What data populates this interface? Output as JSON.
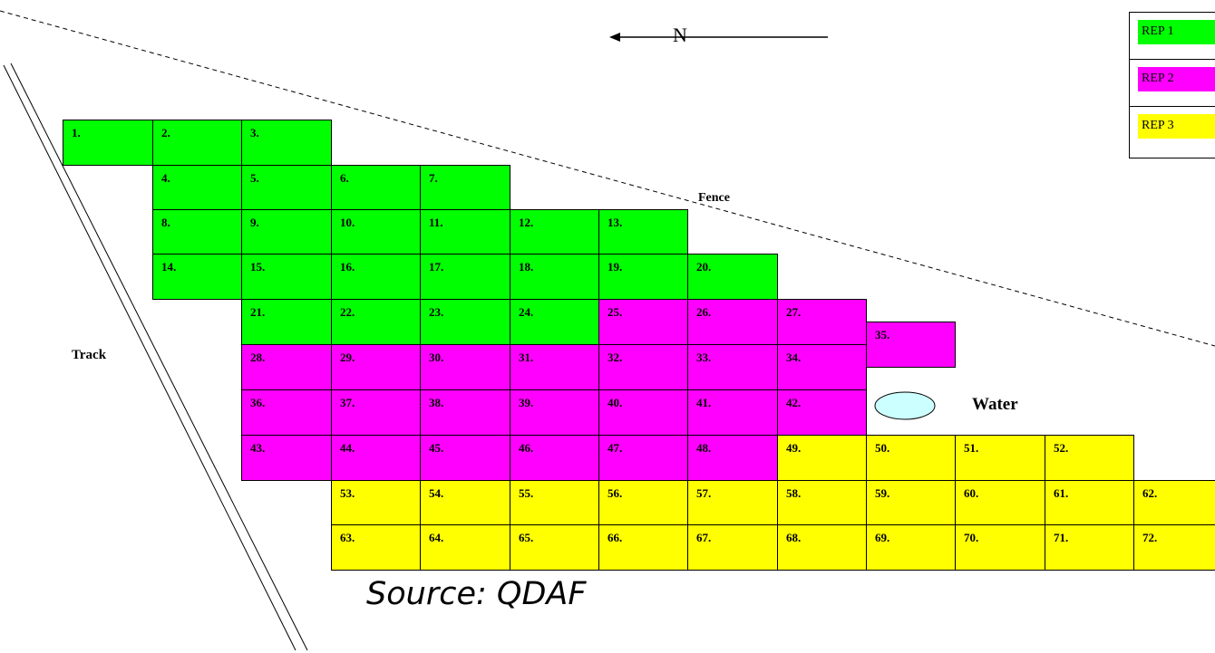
{
  "title": "",
  "colors": {
    "rep1": "#00ff00",
    "rep2": "#ff00ff",
    "rep3": "#ffff00",
    "water": "#ccffff"
  },
  "legend": [
    {
      "label": "REP 1",
      "color": "#00ff00"
    },
    {
      "label": "REP 2",
      "color": "#ff00ff"
    },
    {
      "label": "REP 3",
      "color": "#ffff00"
    }
  ],
  "labels": {
    "north": "N",
    "fence": "Fence",
    "track": "Track",
    "water": "Water",
    "source": "Source: QDAF"
  },
  "plots": [
    {
      "n": "1.",
      "rep": 1
    },
    {
      "n": "2.",
      "rep": 1
    },
    {
      "n": "3.",
      "rep": 1
    },
    {
      "n": "4.",
      "rep": 1
    },
    {
      "n": "5.",
      "rep": 1
    },
    {
      "n": "6.",
      "rep": 1
    },
    {
      "n": "7.",
      "rep": 1
    },
    {
      "n": "8.",
      "rep": 1
    },
    {
      "n": "9.",
      "rep": 1
    },
    {
      "n": "10.",
      "rep": 1
    },
    {
      "n": "11.",
      "rep": 1
    },
    {
      "n": "12.",
      "rep": 1
    },
    {
      "n": "13.",
      "rep": 1
    },
    {
      "n": "14.",
      "rep": 1
    },
    {
      "n": "15.",
      "rep": 1
    },
    {
      "n": "16.",
      "rep": 1
    },
    {
      "n": "17.",
      "rep": 1
    },
    {
      "n": "18.",
      "rep": 1
    },
    {
      "n": "19.",
      "rep": 1
    },
    {
      "n": "20.",
      "rep": 1
    },
    {
      "n": "21.",
      "rep": 1
    },
    {
      "n": "22.",
      "rep": 1
    },
    {
      "n": "23.",
      "rep": 1
    },
    {
      "n": "24.",
      "rep": 1
    },
    {
      "n": "25.",
      "rep": 2
    },
    {
      "n": "26.",
      "rep": 2
    },
    {
      "n": "27.",
      "rep": 2
    },
    {
      "n": "35.",
      "rep": 2
    },
    {
      "n": "28.",
      "rep": 2
    },
    {
      "n": "29.",
      "rep": 2
    },
    {
      "n": "30.",
      "rep": 2
    },
    {
      "n": "31.",
      "rep": 2
    },
    {
      "n": "32.",
      "rep": 2
    },
    {
      "n": "33.",
      "rep": 2
    },
    {
      "n": "34.",
      "rep": 2
    },
    {
      "n": "36.",
      "rep": 2
    },
    {
      "n": "37.",
      "rep": 2
    },
    {
      "n": "38.",
      "rep": 2
    },
    {
      "n": "39.",
      "rep": 2
    },
    {
      "n": "40.",
      "rep": 2
    },
    {
      "n": "41.",
      "rep": 2
    },
    {
      "n": "42.",
      "rep": 2
    },
    {
      "n": "43.",
      "rep": 2
    },
    {
      "n": "44.",
      "rep": 2
    },
    {
      "n": "45.",
      "rep": 2
    },
    {
      "n": "46.",
      "rep": 2
    },
    {
      "n": "47.",
      "rep": 2
    },
    {
      "n": "48.",
      "rep": 2
    },
    {
      "n": "49.",
      "rep": 3
    },
    {
      "n": "50.",
      "rep": 3
    },
    {
      "n": "51.",
      "rep": 3
    },
    {
      "n": "52.",
      "rep": 3
    },
    {
      "n": "53.",
      "rep": 3
    },
    {
      "n": "54.",
      "rep": 3
    },
    {
      "n": "55.",
      "rep": 3
    },
    {
      "n": "56.",
      "rep": 3
    },
    {
      "n": "57.",
      "rep": 3
    },
    {
      "n": "58.",
      "rep": 3
    },
    {
      "n": "59.",
      "rep": 3
    },
    {
      "n": "60.",
      "rep": 3
    },
    {
      "n": "61.",
      "rep": 3
    },
    {
      "n": "62.",
      "rep": 3
    },
    {
      "n": "63.",
      "rep": 3
    },
    {
      "n": "64.",
      "rep": 3
    },
    {
      "n": "65.",
      "rep": 3
    },
    {
      "n": "66.",
      "rep": 3
    },
    {
      "n": "67.",
      "rep": 3
    },
    {
      "n": "68.",
      "rep": 3
    },
    {
      "n": "69.",
      "rep": 3
    },
    {
      "n": "70.",
      "rep": 3
    },
    {
      "n": "71.",
      "rep": 3
    },
    {
      "n": "72.",
      "rep": 3
    }
  ]
}
